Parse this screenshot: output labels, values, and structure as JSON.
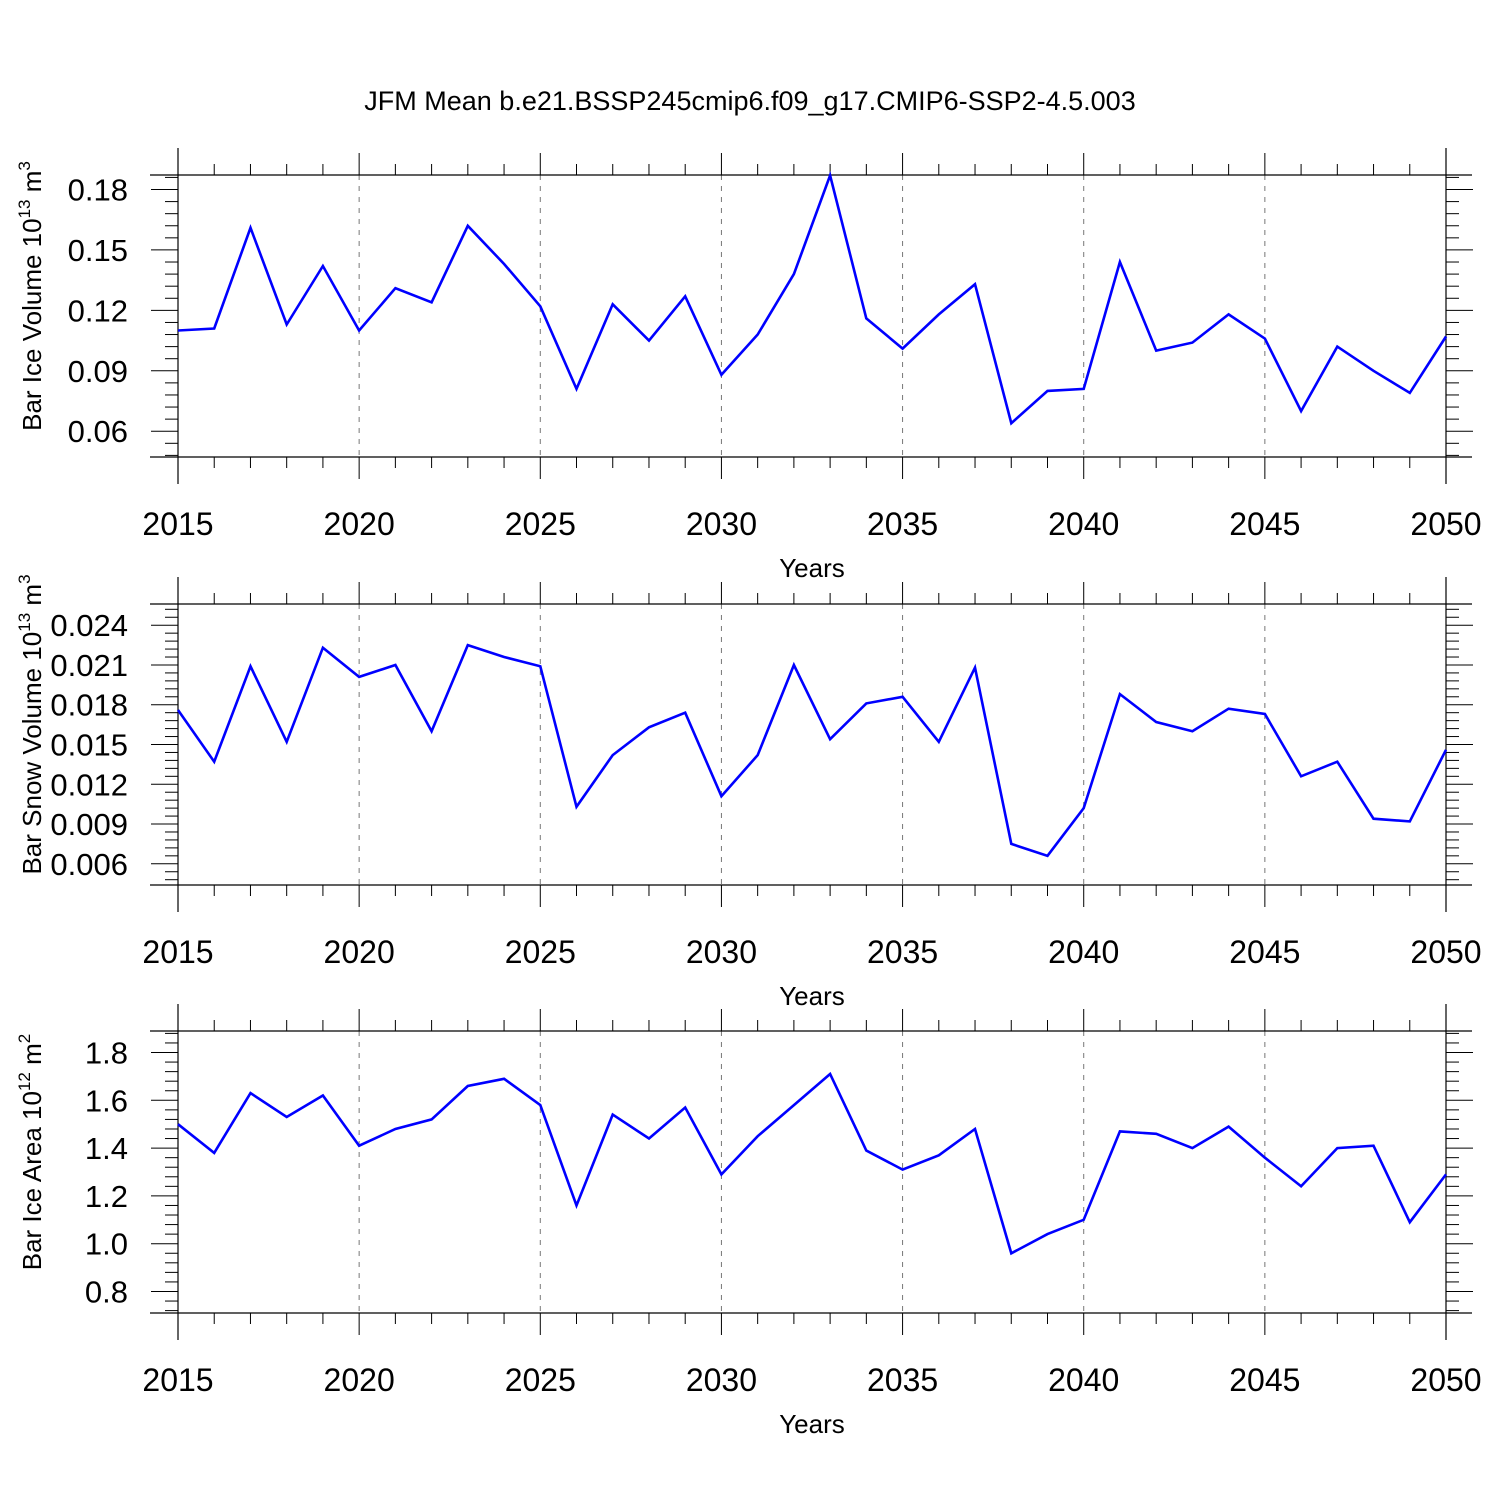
{
  "title": "JFM Mean b.e21.BSSP245cmip6.f09_g17.CMIP6-SSP2-4.5.003",
  "line_color": "#0000ff",
  "chart_data": [
    {
      "type": "line",
      "title": "JFM Mean b.e21.BSSP245cmip6.f09_g17.CMIP6-SSP2-4.5.003",
      "xlabel": "Years",
      "ylabel": {
        "prefix": "Bar Ice Volume 10",
        "exp": "13",
        "unit": " m",
        "unit_exp": "3"
      },
      "xlim": [
        2015,
        2050
      ],
      "ylim": [
        0.0472,
        0.1872
      ],
      "xticks": [
        "2015",
        "2020",
        "2025",
        "2030",
        "2035",
        "2040",
        "2045",
        "2050"
      ],
      "yticks": [
        "0.06",
        "0.09",
        "0.12",
        "0.15",
        "0.18"
      ],
      "grid": "dashed vertical at major x ticks",
      "x": [
        2015,
        2016,
        2017,
        2018,
        2019,
        2020,
        2021,
        2022,
        2023,
        2024,
        2025,
        2026,
        2027,
        2028,
        2029,
        2030,
        2031,
        2032,
        2033,
        2034,
        2035,
        2036,
        2037,
        2038,
        2039,
        2040,
        2041,
        2042,
        2043,
        2044,
        2045,
        2046,
        2047,
        2048,
        2049,
        2050
      ],
      "series": [
        {
          "name": "Bar Ice Volume",
          "values": [
            0.11,
            0.111,
            0.161,
            0.113,
            0.142,
            0.11,
            0.131,
            0.124,
            0.162,
            0.143,
            0.122,
            0.081,
            0.123,
            0.105,
            0.127,
            0.088,
            0.108,
            0.138,
            0.187,
            0.116,
            0.101,
            0.118,
            0.133,
            0.064,
            0.08,
            0.081,
            0.144,
            0.1,
            0.104,
            0.118,
            0.106,
            0.07,
            0.102,
            0.09,
            0.079,
            0.107
          ]
        }
      ]
    },
    {
      "type": "line",
      "xlabel": "Years",
      "ylabel": {
        "prefix": "Bar Snow Volume 10",
        "exp": "13",
        "unit": " m",
        "unit_exp": "3"
      },
      "xlim": [
        2015,
        2050
      ],
      "ylim": [
        0.0044,
        0.0256
      ],
      "xticks": [
        "2015",
        "2020",
        "2025",
        "2030",
        "2035",
        "2040",
        "2045",
        "2050"
      ],
      "yticks": [
        "0.006",
        "0.009",
        "0.012",
        "0.015",
        "0.018",
        "0.021",
        "0.024"
      ],
      "grid": "dashed vertical at major x ticks",
      "x": [
        2015,
        2016,
        2017,
        2018,
        2019,
        2020,
        2021,
        2022,
        2023,
        2024,
        2025,
        2026,
        2027,
        2028,
        2029,
        2030,
        2031,
        2032,
        2033,
        2034,
        2035,
        2036,
        2037,
        2038,
        2039,
        2040,
        2041,
        2042,
        2043,
        2044,
        2045,
        2046,
        2047,
        2048,
        2049,
        2050
      ],
      "series": [
        {
          "name": "Bar Snow Volume",
          "values": [
            0.0176,
            0.0137,
            0.0209,
            0.0152,
            0.0223,
            0.0201,
            0.021,
            0.016,
            0.0225,
            0.0216,
            0.0209,
            0.0103,
            0.0142,
            0.0163,
            0.0174,
            0.0111,
            0.0142,
            0.021,
            0.0154,
            0.0181,
            0.0186,
            0.0152,
            0.0208,
            0.0075,
            0.0066,
            0.0102,
            0.0188,
            0.0167,
            0.016,
            0.0177,
            0.0173,
            0.0126,
            0.0137,
            0.0094,
            0.0092,
            0.0146
          ]
        }
      ]
    },
    {
      "type": "line",
      "xlabel": "Years",
      "ylabel": {
        "prefix": "Bar Ice Area 10",
        "exp": "12",
        "unit": " m",
        "unit_exp": "2"
      },
      "xlim": [
        2015,
        2050
      ],
      "ylim": [
        0.71,
        1.89
      ],
      "xticks": [
        "2015",
        "2020",
        "2025",
        "2030",
        "2035",
        "2040",
        "2045",
        "2050"
      ],
      "yticks": [
        "0.8",
        "1.0",
        "1.2",
        "1.4",
        "1.6",
        "1.8"
      ],
      "grid": "dashed vertical at major x ticks",
      "x": [
        2015,
        2016,
        2017,
        2018,
        2019,
        2020,
        2021,
        2022,
        2023,
        2024,
        2025,
        2026,
        2027,
        2028,
        2029,
        2030,
        2031,
        2032,
        2033,
        2034,
        2035,
        2036,
        2037,
        2038,
        2039,
        2040,
        2041,
        2042,
        2043,
        2044,
        2045,
        2046,
        2047,
        2048,
        2049,
        2050
      ],
      "series": [
        {
          "name": "Bar Ice Area",
          "values": [
            1.5,
            1.38,
            1.63,
            1.53,
            1.62,
            1.41,
            1.48,
            1.52,
            1.66,
            1.69,
            1.58,
            1.16,
            1.54,
            1.44,
            1.57,
            1.29,
            1.45,
            1.58,
            1.71,
            1.39,
            1.31,
            1.37,
            1.48,
            0.96,
            1.04,
            1.1,
            1.47,
            1.46,
            1.4,
            1.49,
            1.36,
            1.24,
            1.4,
            1.41,
            1.09,
            1.29
          ]
        }
      ]
    }
  ]
}
